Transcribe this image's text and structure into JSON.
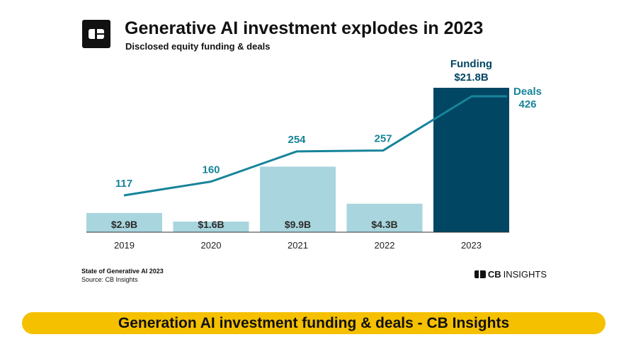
{
  "chart_data": {
    "type": "bar",
    "title": "Generative AI investment explodes in 2023",
    "subtitle": "Disclosed equity funding & deals",
    "categories": [
      "2019",
      "2020",
      "2021",
      "2022",
      "2023"
    ],
    "series": [
      {
        "name": "Funding",
        "kind": "bar",
        "values": [
          2.9,
          1.6,
          9.9,
          4.3,
          21.8
        ],
        "labels": [
          "$2.9B",
          "$1.6B",
          "$9.9B",
          "$4.3B",
          "$21.8B"
        ]
      },
      {
        "name": "Deals",
        "kind": "line",
        "values": [
          117,
          160,
          254,
          257,
          426
        ],
        "labels": [
          "117",
          "160",
          "254",
          "257",
          "426"
        ]
      }
    ],
    "funding_ylim": [
      0,
      22
    ],
    "deals_ylim": [
      0,
      520
    ],
    "colors": {
      "bar": "#a8d5de",
      "bar_highlight": "#014663",
      "line": "#17849a",
      "axis": "#333333"
    }
  },
  "footer": {
    "report": "State of Generative AI 2023",
    "source": "Source: CB Insights",
    "brand_cb": "CB",
    "brand_rest": "INSIGHTS"
  },
  "banner": {
    "text": "Generation AI investment funding & deals - CB Insights"
  }
}
